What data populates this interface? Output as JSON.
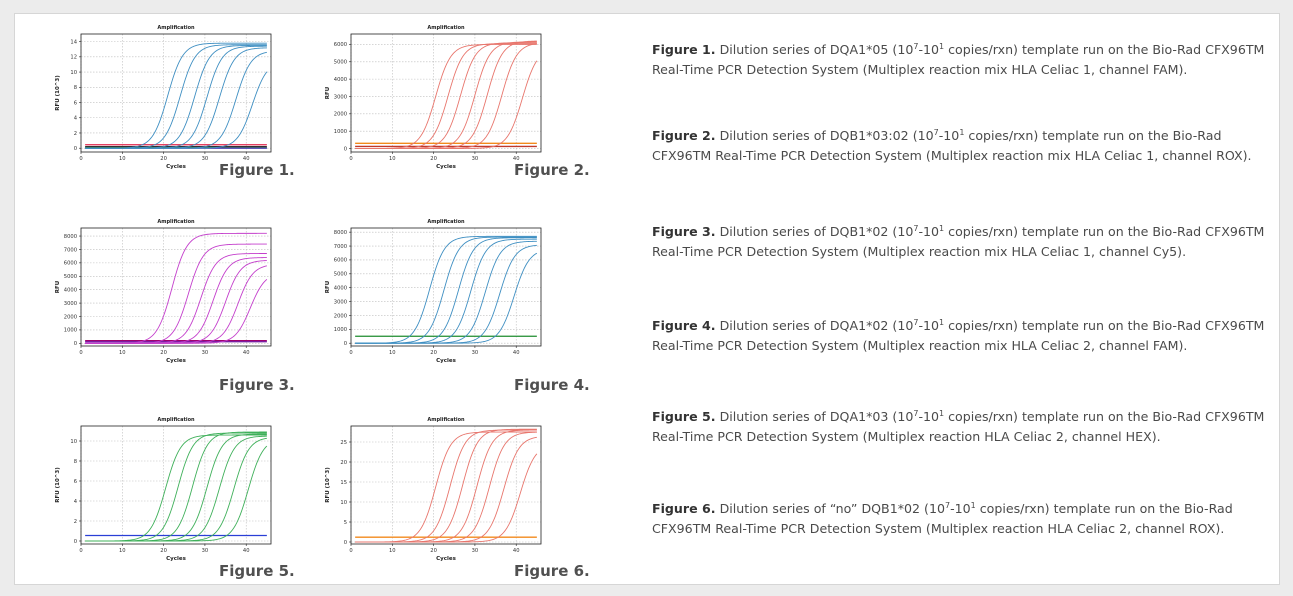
{
  "colors": {
    "panel_bg": "#ffffff",
    "page_bg": "#ececec",
    "grid": "#bdbdbd",
    "axis": "#222222"
  },
  "chart_data": [
    {
      "id": "fig1",
      "type": "line",
      "title": "Amplification",
      "xlabel": "Cycles",
      "ylabel": "RFU (10^3)",
      "xlim": [
        0,
        46
      ],
      "ylim": [
        -0.5,
        15
      ],
      "xticks": [
        0,
        10,
        20,
        30,
        40
      ],
      "yticks": [
        0,
        2,
        4,
        6,
        8,
        10,
        12,
        14
      ],
      "grid": true,
      "figure_label": "Figure 1.",
      "curve_color": "#3f8fc2",
      "curves": [
        {
          "ct": 21.0,
          "plateau": 13.8
        },
        {
          "ct": 24.0,
          "plateau": 13.6
        },
        {
          "ct": 27.5,
          "plateau": 13.5
        },
        {
          "ct": 30.5,
          "plateau": 13.4
        },
        {
          "ct": 33.5,
          "plateau": 13.2
        },
        {
          "ct": 37.5,
          "plateau": 12.8
        },
        {
          "ct": 41.5,
          "plateau": 11.5
        }
      ],
      "baselines": [
        {
          "color": "#e0264b",
          "value": 0.45
        },
        {
          "color": "#333333",
          "value": 0.2
        },
        {
          "color": "#2e8b2e",
          "value": 0.05
        },
        {
          "color": "#4a3fb0",
          "value": 0.0
        }
      ]
    },
    {
      "id": "fig2",
      "type": "line",
      "title": "Amplification",
      "xlabel": "Cycles",
      "ylabel": "RFU",
      "xlim": [
        0,
        46
      ],
      "ylim": [
        -200,
        6600
      ],
      "xticks": [
        0,
        10,
        20,
        30,
        40
      ],
      "yticks": [
        0,
        1000,
        2000,
        3000,
        4000,
        5000,
        6000
      ],
      "grid": true,
      "figure_label": "Figure 2.",
      "curve_color": "#e8766d",
      "curves": [
        {
          "ct": 20.5,
          "plateau": 6000
        },
        {
          "ct": 23.5,
          "plateau": 6050
        },
        {
          "ct": 26.5,
          "plateau": 6100
        },
        {
          "ct": 30.0,
          "plateau": 6150
        },
        {
          "ct": 33.0,
          "plateau": 6200
        },
        {
          "ct": 36.5,
          "plateau": 6100
        },
        {
          "ct": 41.5,
          "plateau": 5800
        }
      ],
      "baselines": [
        {
          "color": "#f28a1c",
          "value": 300
        },
        {
          "color": "#c0392b",
          "value": 120
        }
      ]
    },
    {
      "id": "fig3",
      "type": "line",
      "title": "Amplification",
      "xlabel": "Cycles",
      "ylabel": "RFU",
      "xlim": [
        0,
        46
      ],
      "ylim": [
        -200,
        8600
      ],
      "xticks": [
        0,
        10,
        20,
        30,
        40
      ],
      "yticks": [
        0,
        1000,
        2000,
        3000,
        4000,
        5000,
        6000,
        7000,
        8000
      ],
      "grid": true,
      "figure_label": "Figure 3.",
      "curve_color": "#c43fcc",
      "curves": [
        {
          "ct": 22.0,
          "plateau": 8200
        },
        {
          "ct": 26.0,
          "plateau": 7400
        },
        {
          "ct": 29.0,
          "plateau": 6700
        },
        {
          "ct": 32.0,
          "plateau": 6400
        },
        {
          "ct": 35.0,
          "plateau": 6200
        },
        {
          "ct": 38.0,
          "plateau": 5900
        },
        {
          "ct": 41.0,
          "plateau": 5300
        }
      ],
      "baselines": [
        {
          "color": "#a0006e",
          "value": 200
        },
        {
          "color": "#7a1fa2",
          "value": 120
        }
      ]
    },
    {
      "id": "fig4",
      "type": "line",
      "title": "Amplification",
      "xlabel": "Cycles",
      "ylabel": "RFU",
      "xlim": [
        0,
        46
      ],
      "ylim": [
        -200,
        8300
      ],
      "xticks": [
        0,
        10,
        20,
        30,
        40
      ],
      "yticks": [
        0,
        1000,
        2000,
        3000,
        4000,
        5000,
        6000,
        7000,
        8000
      ],
      "grid": true,
      "figure_label": "Figure 4.",
      "curve_color": "#3f8fc2",
      "curves": [
        {
          "ct": 19.0,
          "plateau": 7700
        },
        {
          "ct": 22.5,
          "plateau": 7650
        },
        {
          "ct": 26.0,
          "plateau": 7600
        },
        {
          "ct": 29.0,
          "plateau": 7500
        },
        {
          "ct": 32.5,
          "plateau": 7350
        },
        {
          "ct": 36.0,
          "plateau": 7100
        },
        {
          "ct": 39.5,
          "plateau": 6800
        }
      ],
      "baselines": [
        {
          "color": "#1e8c2e",
          "value": 500
        }
      ]
    },
    {
      "id": "fig5",
      "type": "line",
      "title": "Amplification",
      "xlabel": "Cycles",
      "ylabel": "RFU (10^3)",
      "xlim": [
        0,
        46
      ],
      "ylim": [
        -0.3,
        11.5
      ],
      "xticks": [
        0,
        10,
        20,
        30,
        40
      ],
      "yticks": [
        0,
        2,
        4,
        6,
        8,
        10
      ],
      "grid": true,
      "figure_label": "Figure 5.",
      "curve_color": "#3fb05a",
      "curves": [
        {
          "ct": 20.5,
          "plateau": 10.6
        },
        {
          "ct": 23.5,
          "plateau": 10.8
        },
        {
          "ct": 27.0,
          "plateau": 10.9
        },
        {
          "ct": 30.5,
          "plateau": 10.7
        },
        {
          "ct": 33.5,
          "plateau": 10.5
        },
        {
          "ct": 37.0,
          "plateau": 10.4
        },
        {
          "ct": 40.5,
          "plateau": 10.3
        }
      ],
      "baselines": [
        {
          "color": "#2a3fd6",
          "value": 0.55
        }
      ]
    },
    {
      "id": "fig6",
      "type": "line",
      "title": "Amplification",
      "xlabel": "Cycles",
      "ylabel": "RFU (10^3)",
      "xlim": [
        0,
        46
      ],
      "ylim": [
        -0.5,
        29
      ],
      "xticks": [
        0,
        10,
        20,
        30,
        40
      ],
      "yticks": [
        0,
        5,
        10,
        15,
        20,
        25
      ],
      "grid": true,
      "figure_label": "Figure 6.",
      "curve_color": "#e8766d",
      "curves": [
        {
          "ct": 20.5,
          "plateau": 27.5
        },
        {
          "ct": 24.0,
          "plateau": 28.0
        },
        {
          "ct": 27.0,
          "plateau": 28.2
        },
        {
          "ct": 30.5,
          "plateau": 28.0
        },
        {
          "ct": 33.5,
          "plateau": 27.5
        },
        {
          "ct": 37.0,
          "plateau": 26.5
        },
        {
          "ct": 41.0,
          "plateau": 24.5
        }
      ],
      "baselines": [
        {
          "color": "#f28a1c",
          "value": 1.2
        }
      ]
    }
  ],
  "captions": [
    {
      "label": "Figure 1.",
      "pre": " Dilution series of DQA1*05 (10",
      "sup1": "7",
      "mid": "-10",
      "sup2": "1",
      "post": " copies/rxn) template run on the Bio-Rad CFX96TM Real-Time PCR Detection System (Multiplex reaction mix HLA Celiac 1, channel FAM)."
    },
    {
      "label": "Figure 2.",
      "pre": " Dilution series of DQB1*03:02 (10",
      "sup1": "7",
      "mid": "-10",
      "sup2": "1",
      "post": " copies/rxn) template run on the Bio-Rad CFX96TM Real-Time PCR Detection System (Multiplex reaction mix HLA Celiac 1, channel ROX)."
    },
    {
      "label": "Figure 3.",
      "pre": " Dilution series of DQB1*02 (10",
      "sup1": "7",
      "mid": "-10",
      "sup2": "1",
      "post": " copies/rxn) template run on the Bio-Rad CFX96TM Real-Time PCR Detection System (Multiplex reaction mix HLA Celiac 1, channel Cy5)."
    },
    {
      "label": "Figure 4.",
      "pre": " Dilution series of DQA1*02 (10",
      "sup1": "7",
      "mid": "-10",
      "sup2": "1",
      "post": " copies/rxn) template run on the Bio-Rad CFX96TM Real-Time PCR Detection System (Multiplex reaction mix HLA Celiac 2, channel FAM)."
    },
    {
      "label": "Figure 5.",
      "pre": " Dilution series of DQA1*03 (10",
      "sup1": "7",
      "mid": "-10",
      "sup2": "1",
      "post": " copies/rxn) template run on the Bio-Rad CFX96TM Real-Time PCR Detection System (Multiplex reaction HLA Celiac 2, channel HEX)."
    },
    {
      "label": "Figure 6.",
      "pre": " Dilution series of “no” DQB1*02 (10",
      "sup1": "7",
      "mid": "-10",
      "sup2": "1",
      "post": " copies/rxn) template run on the Bio-Rad CFX96TM Real-Time PCR Detection System (Multiplex reaction HLA Celiac 2, channel ROX)."
    }
  ]
}
